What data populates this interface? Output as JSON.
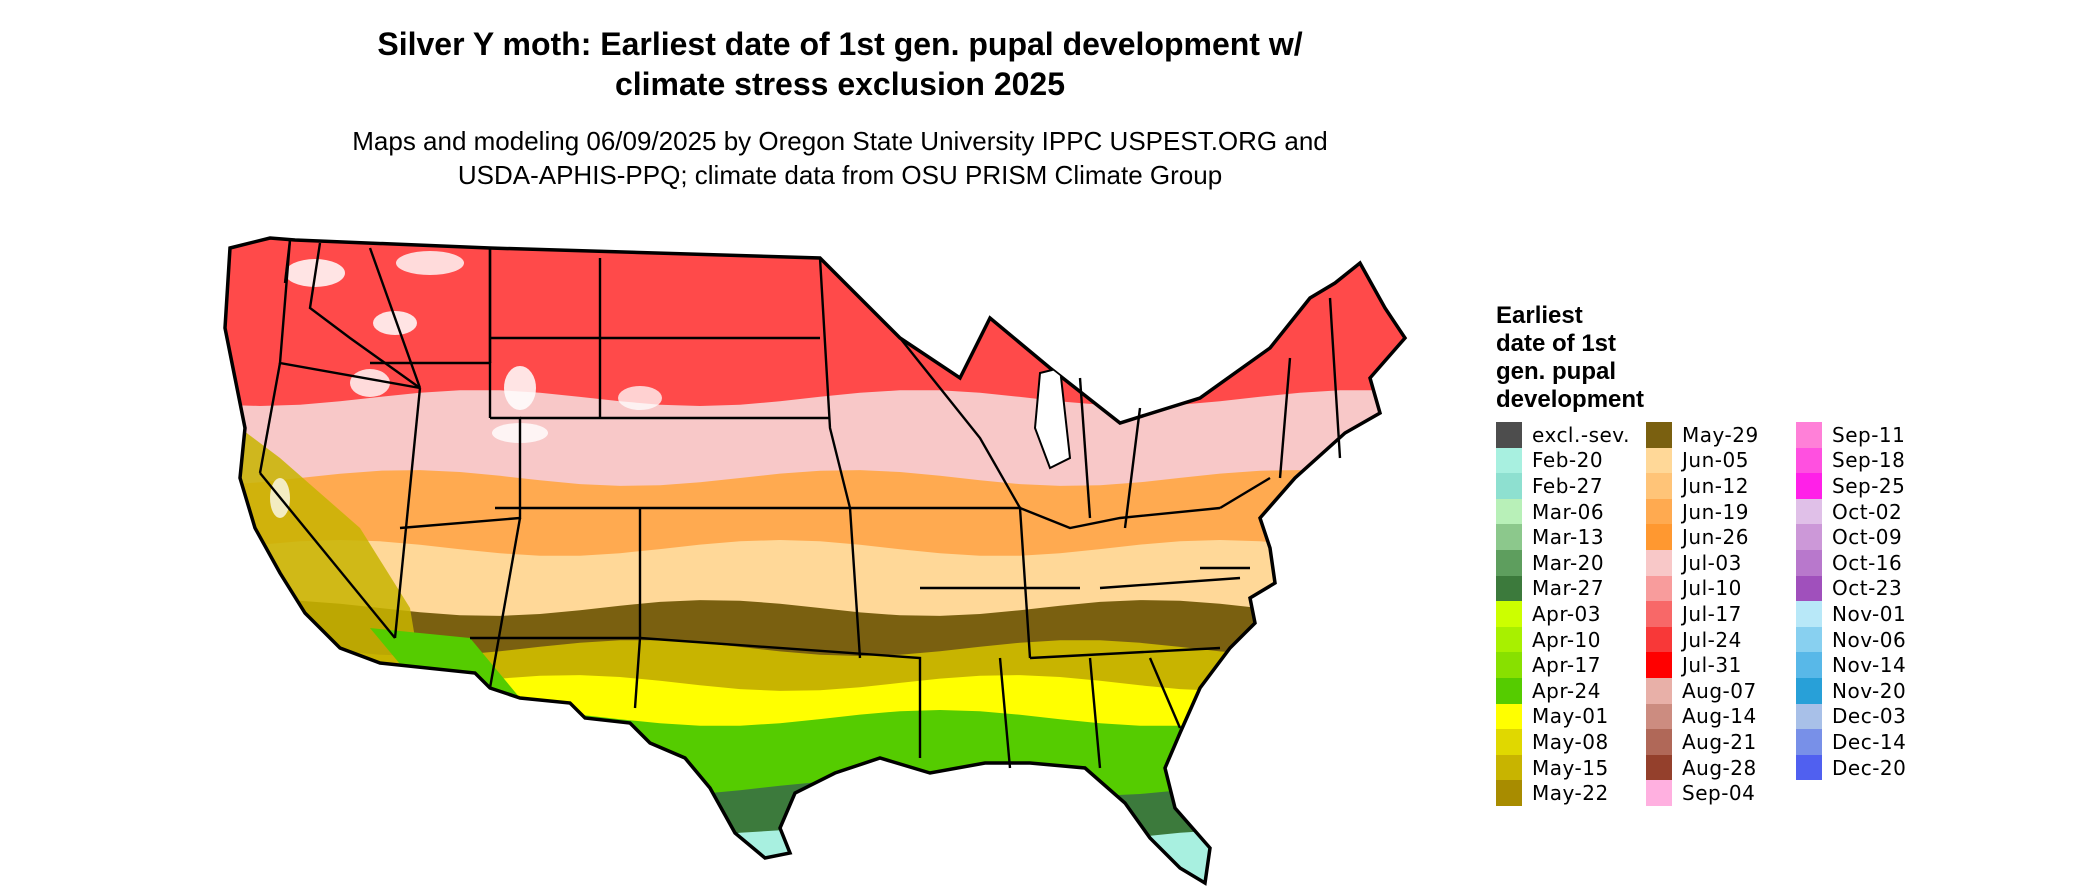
{
  "title": {
    "line1": "Silver Y moth: Earliest date of 1st gen. pupal development w/",
    "line2": "climate stress exclusion 2025"
  },
  "subtitle": {
    "line1": "Maps and modeling 06/09/2025 by Oregon State University IPPC USPEST.ORG and",
    "line2": "USDA-APHIS-PPQ; climate data from OSU PRISM Climate Group"
  },
  "legend": {
    "title_lines": [
      "Earliest",
      "date of 1st",
      "gen. pupal",
      "development"
    ],
    "columns": [
      [
        {
          "label": "excl.-sev.",
          "color": "#4d4d4d"
        },
        {
          "label": "Feb-20",
          "color": "#a8f0e0"
        },
        {
          "label": "Feb-27",
          "color": "#8ee0d0"
        },
        {
          "label": "Mar-06",
          "color": "#b8f0b8"
        },
        {
          "label": "Mar-13",
          "color": "#8cc88c"
        },
        {
          "label": "Mar-20",
          "color": "#5e9e5e"
        },
        {
          "label": "Mar-27",
          "color": "#3c7a3c"
        },
        {
          "label": "Apr-03",
          "color": "#ccff00"
        },
        {
          "label": "Apr-10",
          "color": "#a8f000"
        },
        {
          "label": "Apr-17",
          "color": "#88e000"
        },
        {
          "label": "Apr-24",
          "color": "#55cc00"
        },
        {
          "label": "May-01",
          "color": "#ffff00"
        },
        {
          "label": "May-08",
          "color": "#e0d800"
        },
        {
          "label": "May-15",
          "color": "#c8b400"
        },
        {
          "label": "May-22",
          "color": "#a88c00"
        }
      ],
      [
        {
          "label": "May-29",
          "color": "#7a6010"
        },
        {
          "label": "Jun-05",
          "color": "#ffd898"
        },
        {
          "label": "Jun-12",
          "color": "#ffc478"
        },
        {
          "label": "Jun-19",
          "color": "#ffaa50"
        },
        {
          "label": "Jun-26",
          "color": "#ff9830"
        },
        {
          "label": "Jul-03",
          "color": "#f8c8c8"
        },
        {
          "label": "Jul-10",
          "color": "#f89c9c"
        },
        {
          "label": "Jul-17",
          "color": "#f86868"
        },
        {
          "label": "Jul-24",
          "color": "#f83838"
        },
        {
          "label": "Jul-31",
          "color": "#ff0000"
        },
        {
          "label": "Aug-07",
          "color": "#e8b0a8"
        },
        {
          "label": "Aug-14",
          "color": "#cc8c80"
        },
        {
          "label": "Aug-21",
          "color": "#b06858"
        },
        {
          "label": "Aug-28",
          "color": "#94402c"
        },
        {
          "label": "Sep-04",
          "color": "#ffb0e0"
        }
      ],
      [
        {
          "label": "Sep-11",
          "color": "#ff80d8"
        },
        {
          "label": "Sep-18",
          "color": "#ff50e0"
        },
        {
          "label": "Sep-25",
          "color": "#ff20e8"
        },
        {
          "label": "Oct-02",
          "color": "#e0c0e8"
        },
        {
          "label": "Oct-09",
          "color": "#cc98d8"
        },
        {
          "label": "Oct-16",
          "color": "#b878cc"
        },
        {
          "label": "Oct-23",
          "color": "#a050bc"
        },
        {
          "label": "Nov-01",
          "color": "#b8e8f8"
        },
        {
          "label": "Nov-06",
          "color": "#88d0f0"
        },
        {
          "label": "Nov-14",
          "color": "#58b8e8"
        },
        {
          "label": "Nov-20",
          "color": "#28a0d8"
        },
        {
          "label": "Dec-03",
          "color": "#a8c0e8"
        },
        {
          "label": "Dec-14",
          "color": "#7890e8"
        },
        {
          "label": "Dec-20",
          "color": "#5060f0"
        }
      ]
    ]
  },
  "map": {
    "bands": [
      "#ff4a4a",
      "#f8c8c8",
      "#ffaa50",
      "#ffd898",
      "#7a6010",
      "#c8b400",
      "#ffff00",
      "#55cc00",
      "#3c7a3c",
      "#a8f0e0"
    ],
    "state_border_color": "#000000",
    "exclusion_color": "#ffffff"
  }
}
